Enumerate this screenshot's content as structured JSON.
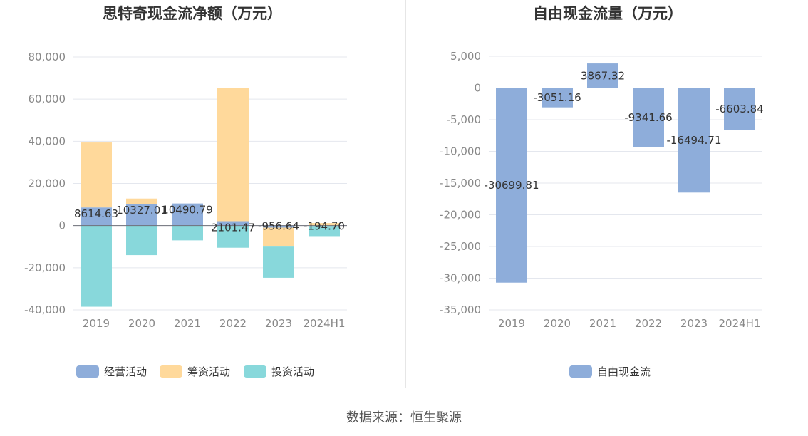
{
  "source_label": "数据来源：恒生聚源",
  "colors": {
    "operating": "#8eadda",
    "financing": "#ffd99b",
    "investing": "#88d8db",
    "free_cash": "#8eadda",
    "grid": "#e4e7ee",
    "axis_text": "#888888",
    "title": "#333333"
  },
  "chart_data": [
    {
      "type": "bar",
      "stacked": true,
      "title": "思特奇现金流净额（万元）",
      "categories": [
        "2019",
        "2020",
        "2021",
        "2022",
        "2023",
        "2024H1"
      ],
      "ylim": [
        -40000,
        80000
      ],
      "yticks": [
        80000,
        60000,
        40000,
        20000,
        0,
        -20000,
        -40000
      ],
      "ytick_labels": [
        "80,000",
        "60,000",
        "40,000",
        "20,000",
        "0",
        "-20,000",
        "-40,000"
      ],
      "grid": true,
      "legend_position": "bottom",
      "series": [
        {
          "name": "经营活动",
          "key": "operating",
          "values": [
            8614.63,
            10327.01,
            10490.79,
            2101.47,
            -956.64,
            -194.7
          ]
        },
        {
          "name": "筹资活动",
          "key": "financing",
          "values": [
            30800,
            2500,
            0,
            63300,
            -9000,
            1200
          ]
        },
        {
          "name": "投资活动",
          "key": "investing",
          "values": [
            -38500,
            -14000,
            -7000,
            -10500,
            -14800,
            -4800
          ]
        }
      ],
      "data_labels": [
        "8614.63",
        "10327.01",
        "10490.79",
        "2101.47",
        "-956.64",
        "-194.70"
      ]
    },
    {
      "type": "bar",
      "title": "自由现金流量（万元）",
      "categories": [
        "2019",
        "2020",
        "2021",
        "2022",
        "2023",
        "2024H1"
      ],
      "ylim": [
        -35000,
        5000
      ],
      "yticks": [
        5000,
        0,
        -5000,
        -10000,
        -15000,
        -20000,
        -25000,
        -30000,
        -35000
      ],
      "ytick_labels": [
        "5,000",
        "0",
        "-5,000",
        "-10,000",
        "-15,000",
        "-20,000",
        "-25,000",
        "-30,000",
        "-35,000"
      ],
      "grid": true,
      "legend_position": "bottom",
      "series": [
        {
          "name": "自由现金流",
          "key": "free_cash",
          "values": [
            -30699.81,
            -3051.16,
            3867.32,
            -9341.66,
            -16494.71,
            -6603.84
          ]
        }
      ],
      "data_labels": [
        "-30699.81",
        "-3051.16",
        "3867.32",
        "-9341.66",
        "-16494.71",
        "-6603.84"
      ]
    }
  ]
}
